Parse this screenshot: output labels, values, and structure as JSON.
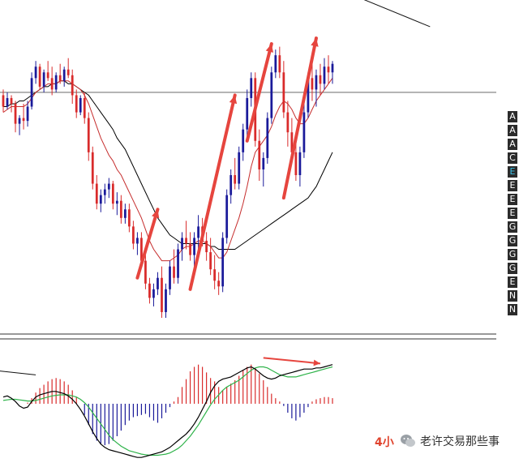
{
  "chart_data": [
    {
      "type": "candlestick",
      "title": "",
      "xlabel": "",
      "ylabel": "",
      "ylim": [
        0,
        100
      ],
      "grid": false,
      "candles": [
        [
          78,
          80,
          72,
          74
        ],
        [
          74,
          79,
          73,
          77
        ],
        [
          77,
          78,
          72,
          75
        ],
        [
          75,
          76,
          65,
          68
        ],
        [
          68,
          71,
          64,
          70
        ],
        [
          70,
          75,
          66,
          69
        ],
        [
          69,
          76,
          67,
          74
        ],
        [
          74,
          86,
          73,
          84
        ],
        [
          84,
          90,
          82,
          88
        ],
        [
          88,
          89,
          80,
          81
        ],
        [
          81,
          87,
          79,
          86
        ],
        [
          86,
          90,
          83,
          84
        ],
        [
          84,
          88,
          78,
          80
        ],
        [
          80,
          86,
          79,
          85
        ],
        [
          85,
          89,
          82,
          83
        ],
        [
          83,
          88,
          81,
          87
        ],
        [
          87,
          91,
          84,
          85
        ],
        [
          85,
          87,
          75,
          78
        ],
        [
          78,
          80,
          70,
          72
        ],
        [
          72,
          78,
          71,
          77
        ],
        [
          77,
          79,
          68,
          70
        ],
        [
          70,
          72,
          55,
          58
        ],
        [
          58,
          60,
          45,
          47
        ],
        [
          47,
          50,
          38,
          40
        ],
        [
          40,
          45,
          37,
          43
        ],
        [
          43,
          47,
          40,
          45
        ],
        [
          45,
          49,
          42,
          47
        ],
        [
          47,
          48,
          38,
          40
        ],
        [
          40,
          44,
          36,
          41
        ],
        [
          41,
          43,
          33,
          35
        ],
        [
          35,
          40,
          33,
          38
        ],
        [
          38,
          40,
          30,
          32
        ],
        [
          32,
          34,
          24,
          26
        ],
        [
          26,
          30,
          22,
          28
        ],
        [
          28,
          30,
          18,
          20
        ],
        [
          20,
          22,
          10,
          12
        ],
        [
          12,
          14,
          5,
          7
        ],
        [
          7,
          12,
          4,
          10
        ],
        [
          10,
          16,
          8,
          14
        ],
        [
          14,
          18,
          0,
          2
        ],
        [
          2,
          12,
          0,
          10
        ],
        [
          10,
          20,
          8,
          18
        ],
        [
          18,
          24,
          12,
          14
        ],
        [
          14,
          26,
          12,
          24
        ],
        [
          24,
          30,
          20,
          28
        ],
        [
          28,
          34,
          24,
          26
        ],
        [
          26,
          30,
          20,
          22
        ],
        [
          22,
          30,
          16,
          28
        ],
        [
          28,
          36,
          24,
          32
        ],
        [
          32,
          35,
          25,
          27
        ],
        [
          27,
          30,
          20,
          23
        ],
        [
          23,
          28,
          15,
          17
        ],
        [
          17,
          22,
          10,
          13
        ],
        [
          13,
          16,
          8,
          11
        ],
        [
          11,
          30,
          9,
          28
        ],
        [
          28,
          45,
          26,
          43
        ],
        [
          43,
          52,
          40,
          50
        ],
        [
          50,
          56,
          45,
          47
        ],
        [
          47,
          60,
          45,
          58
        ],
        [
          58,
          68,
          55,
          66
        ],
        [
          66,
          80,
          63,
          77
        ],
        [
          77,
          86,
          74,
          84
        ],
        [
          84,
          86,
          60,
          62
        ],
        [
          62,
          66,
          48,
          52
        ],
        [
          52,
          58,
          46,
          56
        ],
        [
          56,
          72,
          54,
          70
        ],
        [
          70,
          88,
          68,
          86
        ],
        [
          86,
          94,
          84,
          92
        ],
        [
          92,
          95,
          84,
          86
        ],
        [
          86,
          90,
          70,
          72
        ],
        [
          72,
          76,
          60,
          65
        ],
        [
          65,
          70,
          55,
          58
        ],
        [
          58,
          62,
          48,
          50
        ],
        [
          50,
          60,
          46,
          58
        ],
        [
          58,
          75,
          56,
          72
        ],
        [
          72,
          86,
          70,
          84
        ],
        [
          84,
          89,
          76,
          80
        ],
        [
          80,
          87,
          74,
          85
        ],
        [
          85,
          89,
          78,
          82
        ],
        [
          82,
          91,
          80,
          88
        ],
        [
          88,
          92,
          82,
          86
        ],
        [
          86,
          90,
          82,
          89
        ]
      ],
      "ma_fast": [
        72,
        73,
        74,
        74,
        74,
        74,
        75,
        77,
        79,
        80,
        81,
        82,
        82,
        82,
        83,
        83,
        83,
        82,
        81,
        80,
        78,
        75,
        71,
        67,
        63,
        60,
        57,
        55,
        52,
        50,
        47,
        44,
        41,
        38,
        35,
        31,
        27,
        24,
        22,
        20,
        20,
        20,
        21,
        22,
        24,
        25,
        25,
        26,
        27,
        27,
        26,
        25,
        23,
        21,
        21,
        23,
        27,
        31,
        35,
        40,
        46,
        53,
        58,
        60,
        62,
        64,
        67,
        71,
        74,
        76,
        75,
        73,
        70,
        68,
        68,
        70,
        73,
        76,
        78,
        80,
        82,
        84
      ],
      "ma_slow": [
        74,
        74,
        75,
        75,
        76,
        76,
        77,
        78,
        79,
        80,
        81,
        81,
        82,
        82,
        83,
        83,
        82,
        82,
        81,
        80,
        79,
        78,
        76,
        74,
        72,
        70,
        68,
        66,
        63,
        61,
        59,
        56,
        53,
        50,
        47,
        44,
        41,
        38,
        35,
        33,
        31,
        29,
        28,
        27,
        26,
        26,
        26,
        26,
        26,
        26,
        26,
        25,
        25,
        24,
        24,
        24,
        24,
        24,
        25,
        26,
        27,
        28,
        29,
        30,
        31,
        32,
        33,
        34,
        35,
        36,
        37,
        38,
        39,
        40,
        41,
        42,
        44,
        46,
        49,
        52,
        55,
        58
      ],
      "arrows": [
        [
          33,
          14,
          38,
          38
        ],
        [
          46,
          10,
          57,
          78
        ],
        [
          60,
          62,
          66,
          96
        ],
        [
          69,
          42,
          77,
          98
        ]
      ],
      "trendlines": [
        {
          "from": [
            40,
            140
          ],
          "to": [
            105,
            102
          ]
        },
        {
          "from": [
            -5,
            -18
          ],
          "to": [
            8,
            -20
          ]
        }
      ],
      "hline": 79
    },
    {
      "type": "macd",
      "title": "",
      "ylim": [
        -100,
        100
      ],
      "histogram": [
        0,
        0,
        0,
        0,
        0,
        0,
        2,
        10,
        20,
        28,
        34,
        40,
        44,
        46,
        44,
        40,
        34,
        24,
        12,
        0,
        -20,
        -38,
        -54,
        -66,
        -72,
        -74,
        -72,
        -66,
        -58,
        -48,
        -38,
        -30,
        -24,
        -22,
        -20,
        -18,
        -24,
        -30,
        -34,
        -26,
        -16,
        -6,
        4,
        12,
        30,
        44,
        58,
        66,
        70,
        66,
        56,
        46,
        40,
        30,
        24,
        30,
        36,
        42,
        50,
        60,
        66,
        70,
        64,
        54,
        42,
        30,
        18,
        10,
        4,
        -4,
        -16,
        -26,
        -30,
        -24,
        -16,
        -6,
        4,
        8,
        10,
        12,
        12,
        10
      ],
      "dif": [
        12,
        14,
        10,
        4,
        -4,
        -8,
        -6,
        4,
        12,
        16,
        18,
        20,
        22,
        22,
        20,
        18,
        14,
        8,
        0,
        -10,
        -22,
        -36,
        -50,
        -62,
        -72,
        -78,
        -82,
        -84,
        -86,
        -88,
        -90,
        -92,
        -94,
        -96,
        -96,
        -94,
        -92,
        -90,
        -88,
        -86,
        -82,
        -78,
        -72,
        -66,
        -60,
        -54,
        -46,
        -36,
        -24,
        -10,
        4,
        20,
        32,
        40,
        44,
        46,
        48,
        52,
        56,
        60,
        64,
        66,
        62,
        56,
        50,
        46,
        44,
        46,
        50,
        52,
        54,
        56,
        58,
        60,
        62,
        62,
        62,
        64,
        64,
        66,
        68,
        70
      ],
      "dea": [
        6,
        7,
        8,
        8,
        7,
        6,
        5,
        5,
        6,
        8,
        10,
        12,
        14,
        15,
        16,
        16,
        16,
        14,
        12,
        8,
        2,
        -6,
        -16,
        -26,
        -36,
        -46,
        -56,
        -64,
        -70,
        -76,
        -80,
        -84,
        -86,
        -88,
        -90,
        -91,
        -92,
        -92,
        -92,
        -91,
        -90,
        -88,
        -84,
        -80,
        -74,
        -66,
        -58,
        -48,
        -38,
        -26,
        -14,
        -2,
        8,
        16,
        24,
        30,
        34,
        38,
        42,
        48,
        54,
        60,
        64,
        66,
        66,
        64,
        60,
        56,
        52,
        50,
        48,
        48,
        48,
        50,
        52,
        54,
        56,
        58,
        60,
        62,
        64,
        66
      ],
      "arrows": [
        [
          64,
          82,
          78,
          72
        ]
      ]
    }
  ],
  "sidebar": {
    "buttons": [
      "A",
      "A",
      "A",
      "C",
      "E",
      "E",
      "E",
      "E",
      "G",
      "G",
      "G",
      "G",
      "E",
      "N",
      "N"
    ],
    "active_index": 4
  },
  "overlay": {
    "timeframe": "4小",
    "watermark": "老许交易那些事"
  },
  "colors": {
    "up": "#1a1a9a",
    "down": "#d92b2b",
    "arrow": "#e6453e",
    "ma_fast": "#c62e2e",
    "ma_slow": "#000000",
    "dea": "#2fb34a",
    "background": "#ffffff",
    "sidebar_bg": "#2b2b2b",
    "sidebar_active": "#39c0e6"
  },
  "icons": [
    "wechat-logo-icon"
  ]
}
